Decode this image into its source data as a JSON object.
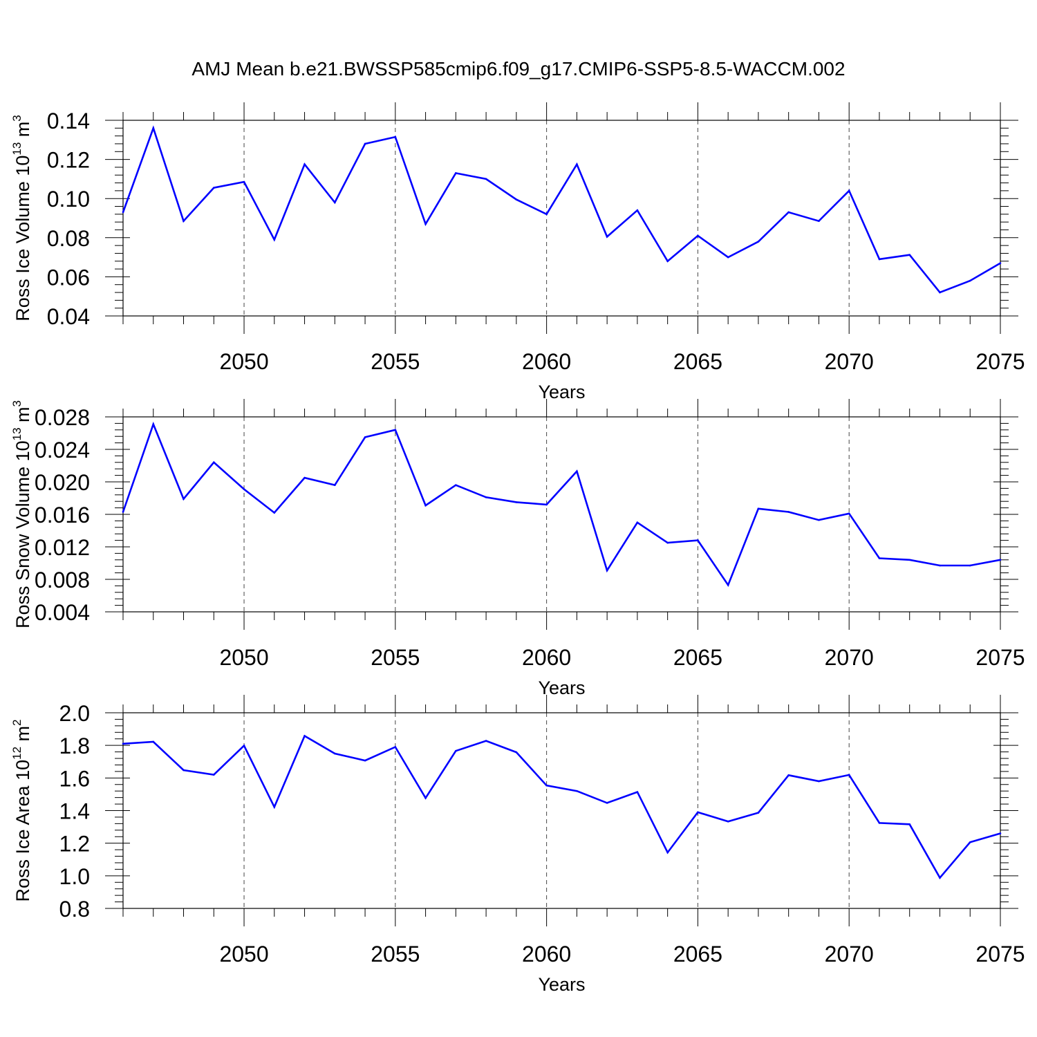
{
  "title": "AMJ Mean b.e21.BWSSP585cmip6.f09_g17.CMIP6-SSP5-8.5-WACCM.002",
  "colors": {
    "series": "#0000ff",
    "axis": "#000000",
    "grid": "#444444"
  },
  "chart_data": [
    {
      "type": "line",
      "xlabel": "Years",
      "ylabel": "Ross Ice Volume 10",
      "ylabel_exp": "13",
      "ylabel_unit": " m",
      "ylabel_unit_exp": "3",
      "xlim": [
        2046,
        2075
      ],
      "ylim": [
        0.04,
        0.14
      ],
      "yticks": [
        0.04,
        0.06,
        0.08,
        0.1,
        0.12,
        0.14
      ],
      "ytick_labels": [
        "0.04",
        "0.06",
        "0.08",
        "0.10",
        "0.12",
        "0.14"
      ],
      "xticks": [
        2050,
        2055,
        2060,
        2065,
        2070,
        2075
      ],
      "xtick_labels": [
        "2050",
        "2055",
        "2060",
        "2065",
        "2070",
        "2075"
      ],
      "grid": "vertical dashed at major x ticks",
      "x": [
        2046,
        2047,
        2048,
        2049,
        2050,
        2051,
        2052,
        2053,
        2054,
        2055,
        2056,
        2057,
        2058,
        2059,
        2060,
        2061,
        2062,
        2063,
        2064,
        2065,
        2066,
        2067,
        2068,
        2069,
        2070,
        2071,
        2072,
        2073,
        2074,
        2075
      ],
      "values": [
        0.093,
        0.136,
        0.0885,
        0.1055,
        0.1085,
        0.079,
        0.1175,
        0.098,
        0.128,
        0.1315,
        0.087,
        0.113,
        0.11,
        0.0995,
        0.092,
        0.1175,
        0.0805,
        0.094,
        0.068,
        0.081,
        0.07,
        0.078,
        0.093,
        0.0885,
        0.104,
        0.069,
        0.0712,
        0.052,
        0.058,
        0.067
      ]
    },
    {
      "type": "line",
      "xlabel": "Years",
      "ylabel": "Ross Snow Volume 10",
      "ylabel_exp": "13",
      "ylabel_unit": " m",
      "ylabel_unit_exp": "3",
      "xlim": [
        2046,
        2075
      ],
      "ylim": [
        0.004,
        0.028
      ],
      "yticks": [
        0.004,
        0.008,
        0.012,
        0.016,
        0.02,
        0.024,
        0.028
      ],
      "ytick_labels": [
        "0.004",
        "0.008",
        "0.012",
        "0.016",
        "0.020",
        "0.024",
        "0.028"
      ],
      "xticks": [
        2050,
        2055,
        2060,
        2065,
        2070,
        2075
      ],
      "xtick_labels": [
        "2050",
        "2055",
        "2060",
        "2065",
        "2070",
        "2075"
      ],
      "grid": "vertical dashed at major x ticks",
      "x": [
        2046,
        2047,
        2048,
        2049,
        2050,
        2051,
        2052,
        2053,
        2054,
        2055,
        2056,
        2057,
        2058,
        2059,
        2060,
        2061,
        2062,
        2063,
        2064,
        2065,
        2066,
        2067,
        2068,
        2069,
        2070,
        2071,
        2072,
        2073,
        2074,
        2075
      ],
      "values": [
        0.0163,
        0.0271,
        0.0179,
        0.0224,
        0.0191,
        0.0162,
        0.0205,
        0.0196,
        0.0255,
        0.0264,
        0.0171,
        0.0196,
        0.0181,
        0.0175,
        0.0172,
        0.0213,
        0.0091,
        0.015,
        0.0125,
        0.0128,
        0.0073,
        0.0167,
        0.0163,
        0.0153,
        0.0161,
        0.0106,
        0.0104,
        0.0097,
        0.0097,
        0.0104
      ]
    },
    {
      "type": "line",
      "xlabel": "Years",
      "ylabel": "Ross Ice Area 10",
      "ylabel_exp": "12",
      "ylabel_unit": " m",
      "ylabel_unit_exp": "2",
      "xlim": [
        2046,
        2075
      ],
      "ylim": [
        0.8,
        2.0
      ],
      "yticks": [
        0.8,
        1.0,
        1.2,
        1.4,
        1.6,
        1.8,
        2.0
      ],
      "ytick_labels": [
        "0.8",
        "1.0",
        "1.2",
        "1.4",
        "1.6",
        "1.8",
        "2.0"
      ],
      "xticks": [
        2050,
        2055,
        2060,
        2065,
        2070,
        2075
      ],
      "xtick_labels": [
        "2050",
        "2055",
        "2060",
        "2065",
        "2070",
        "2075"
      ],
      "grid": "vertical dashed at major x ticks",
      "x": [
        2046,
        2047,
        2048,
        2049,
        2050,
        2051,
        2052,
        2053,
        2054,
        2055,
        2056,
        2057,
        2058,
        2059,
        2060,
        2061,
        2062,
        2063,
        2064,
        2065,
        2066,
        2067,
        2068,
        2069,
        2070,
        2071,
        2072,
        2073,
        2074,
        2075
      ],
      "values": [
        1.81,
        1.822,
        1.648,
        1.62,
        1.798,
        1.422,
        1.858,
        1.75,
        1.707,
        1.79,
        1.477,
        1.766,
        1.828,
        1.758,
        1.554,
        1.52,
        1.447,
        1.514,
        1.143,
        1.39,
        1.333,
        1.387,
        1.617,
        1.58,
        1.619,
        1.324,
        1.316,
        0.988,
        1.206,
        1.26
      ]
    }
  ]
}
